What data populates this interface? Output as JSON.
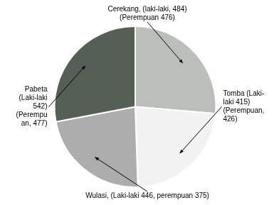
{
  "chart_data": {
    "type": "pie",
    "values": [
      960,
      841,
      821,
      1019
    ],
    "colors": [
      "#babfba",
      "#f2f2f2",
      "#adadad",
      "#555f55"
    ],
    "annotations": [
      "Cerekang, (laki-laki, 484)\n(Perempuan 476)",
      "Tomba (Laki-\nlaki 415)\n(Perempuan,\n426)",
      "Wulasi, (Laki-laki 446, perempuan 375)",
      "Pabeta\n(Laki-laki\n542)\n(Perempu\nan, 477)"
    ]
  }
}
